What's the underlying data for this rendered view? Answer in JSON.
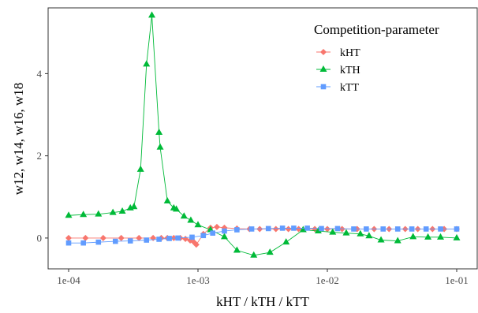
{
  "chart_data": {
    "type": "line",
    "xlabel": "kHT / kTH / kTT",
    "ylabel": "w12, w14, w16, w18",
    "x_scale": "log",
    "xlim": [
      0.0001,
      0.1
    ],
    "ylim": [
      -0.75,
      5.6
    ],
    "x_ticks": [
      0.0001,
      0.001,
      0.01,
      0.1
    ],
    "x_tick_labels": [
      "1e-04",
      "1e-03",
      "1e-02",
      "1e-01"
    ],
    "y_ticks": [
      0,
      2,
      4
    ],
    "y_tick_labels": [
      "0",
      "2",
      "4"
    ],
    "grid": false,
    "legend": {
      "title": "Competition-parameter",
      "placement": "top-right"
    },
    "series": [
      {
        "name": "kHT",
        "color": "#F8766D",
        "marker": "diamond",
        "points": [
          [
            0.0001,
            0.0
          ],
          [
            0.000135,
            0.0
          ],
          [
            0.000185,
            0.0
          ],
          [
            0.000255,
            0.0
          ],
          [
            0.00035,
            0.0
          ],
          [
            0.00045,
            0.0
          ],
          [
            0.00052,
            0.0
          ],
          [
            0.00058,
            0.0
          ],
          [
            0.00065,
            0.0
          ],
          [
            0.00073,
            0.0
          ],
          [
            0.0008,
            -0.02
          ],
          [
            0.00087,
            -0.06
          ],
          [
            0.00093,
            -0.1
          ],
          [
            0.00097,
            -0.16
          ],
          [
            0.0011,
            0.1
          ],
          [
            0.00125,
            0.25
          ],
          [
            0.0014,
            0.27
          ],
          [
            0.0016,
            0.25
          ],
          [
            0.002,
            0.23
          ],
          [
            0.0025,
            0.22
          ],
          [
            0.003,
            0.22
          ],
          [
            0.004,
            0.22
          ],
          [
            0.005,
            0.22
          ],
          [
            0.006,
            0.22
          ],
          [
            0.008,
            0.22
          ],
          [
            0.01,
            0.22
          ],
          [
            0.013,
            0.22
          ],
          [
            0.017,
            0.22
          ],
          [
            0.023,
            0.22
          ],
          [
            0.03,
            0.22
          ],
          [
            0.04,
            0.22
          ],
          [
            0.05,
            0.22
          ],
          [
            0.065,
            0.22
          ],
          [
            0.08,
            0.22
          ],
          [
            0.1,
            0.22
          ]
        ]
      },
      {
        "name": "kTH",
        "color": "#00BA38",
        "marker": "triangle",
        "points": [
          [
            0.0001,
            0.55
          ],
          [
            0.00013,
            0.57
          ],
          [
            0.00017,
            0.58
          ],
          [
            0.00022,
            0.62
          ],
          [
            0.00026,
            0.65
          ],
          [
            0.0003,
            0.73
          ],
          [
            0.00032,
            0.76
          ],
          [
            0.00036,
            1.67
          ],
          [
            0.0004,
            4.23
          ],
          [
            0.00044,
            5.42
          ],
          [
            0.0005,
            2.57
          ],
          [
            0.00051,
            2.21
          ],
          [
            0.00058,
            0.9
          ],
          [
            0.00065,
            0.73
          ],
          [
            0.00068,
            0.7
          ],
          [
            0.00078,
            0.53
          ],
          [
            0.00088,
            0.43
          ],
          [
            0.001,
            0.32
          ],
          [
            0.00125,
            0.2
          ],
          [
            0.0016,
            0.03
          ],
          [
            0.002,
            -0.3
          ],
          [
            0.0027,
            -0.42
          ],
          [
            0.0036,
            -0.35
          ],
          [
            0.0048,
            -0.1
          ],
          [
            0.0065,
            0.2
          ],
          [
            0.0085,
            0.17
          ],
          [
            0.011,
            0.14
          ],
          [
            0.014,
            0.12
          ],
          [
            0.018,
            0.1
          ],
          [
            0.021,
            0.05
          ],
          [
            0.026,
            -0.05
          ],
          [
            0.035,
            -0.07
          ],
          [
            0.046,
            0.03
          ],
          [
            0.06,
            0.02
          ],
          [
            0.075,
            0.02
          ],
          [
            0.1,
            0.0
          ]
        ]
      },
      {
        "name": "kTT",
        "color": "#619CFF",
        "marker": "square",
        "points": [
          [
            0.0001,
            -0.12
          ],
          [
            0.00013,
            -0.12
          ],
          [
            0.00017,
            -0.1
          ],
          [
            0.00023,
            -0.08
          ],
          [
            0.0003,
            -0.07
          ],
          [
            0.0004,
            -0.05
          ],
          [
            0.0005,
            -0.03
          ],
          [
            0.0006,
            -0.01
          ],
          [
            0.0007,
            0.0
          ],
          [
            0.0009,
            0.02
          ],
          [
            0.0011,
            0.06
          ],
          [
            0.0013,
            0.12
          ],
          [
            0.0016,
            0.17
          ],
          [
            0.002,
            0.2
          ],
          [
            0.0026,
            0.22
          ],
          [
            0.0035,
            0.23
          ],
          [
            0.0045,
            0.24
          ],
          [
            0.0055,
            0.24
          ],
          [
            0.007,
            0.24
          ],
          [
            0.009,
            0.23
          ],
          [
            0.012,
            0.23
          ],
          [
            0.016,
            0.22
          ],
          [
            0.02,
            0.22
          ],
          [
            0.027,
            0.22
          ],
          [
            0.035,
            0.22
          ],
          [
            0.045,
            0.22
          ],
          [
            0.058,
            0.22
          ],
          [
            0.075,
            0.22
          ],
          [
            0.1,
            0.22
          ]
        ]
      }
    ]
  }
}
